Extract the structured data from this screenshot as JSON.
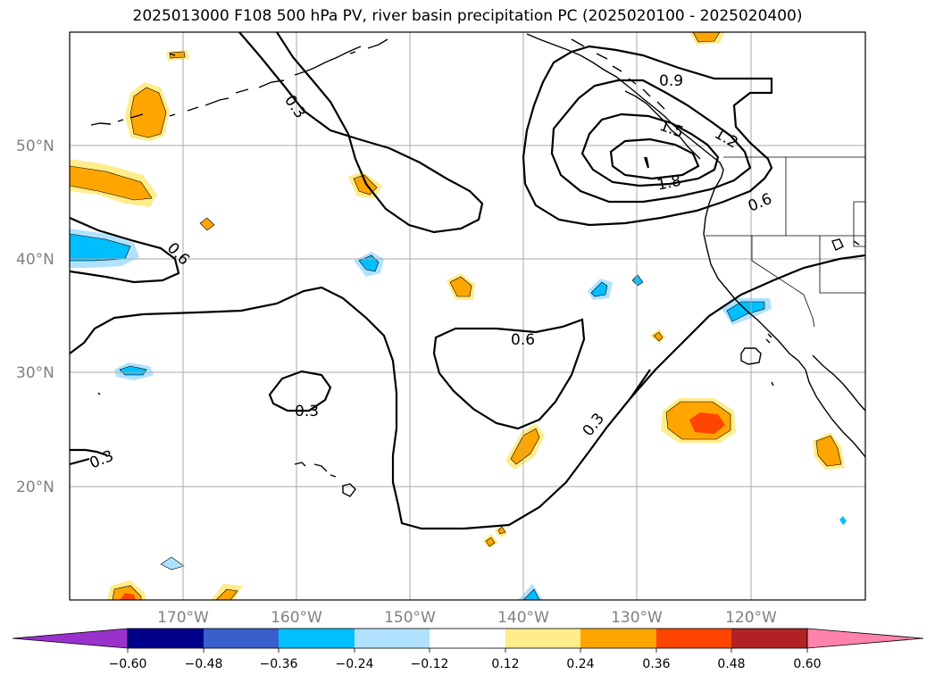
{
  "title": "2025013000 F108 500 hPa PV, river basin precipitation PC (2025020100 - 2025020400)",
  "latitude_labels": [
    "50°N",
    "40°N",
    "30°N",
    "20°N"
  ],
  "longitude_labels": [
    "170°W",
    "160°W",
    "150°W",
    "140°W",
    "130°W",
    "120°W"
  ],
  "contour_labels": [
    "0.3",
    "0.6",
    "0.9",
    "1.2",
    "1.5",
    "1.8",
    "0.6",
    "0.6",
    "0.3",
    "0.3",
    "0.3"
  ],
  "colorbar": {
    "colors": [
      "#9932cc",
      "#00008b",
      "#3a5fcd",
      "#00bfff",
      "#b0e2ff",
      "#ffffff",
      "#ffec8b",
      "#ffa500",
      "#ff4500",
      "#b22222",
      "#ff82ab"
    ],
    "tick_labels": [
      "−0.60",
      "−0.48",
      "−0.36",
      "−0.24",
      "−0.12",
      "0.12",
      "0.24",
      "0.36",
      "0.48",
      "0.60"
    ]
  },
  "colors": {
    "positive_light": "#ffec8b",
    "positive_mid": "#ffa500",
    "positive_high": "#ff4500",
    "negative_light": "#b0e2ff",
    "negative_mid": "#00bfff"
  }
}
